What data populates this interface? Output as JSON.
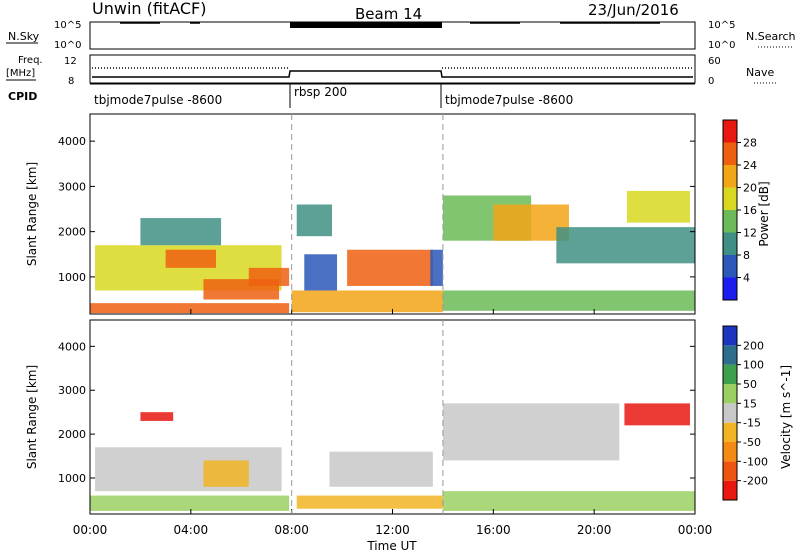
{
  "header": {
    "site": "Unwin (fitACF)",
    "beam": "Beam 14",
    "date": "23/Jun/2016"
  },
  "panels": {
    "nsky_label": "N.Sky",
    "nsky_ticks": [
      "10^5",
      "10^0"
    ],
    "nsearch_label": "N.Search",
    "freq_label": [
      "Freq.",
      "[MHz]"
    ],
    "freq_ticks": [
      "12",
      "8"
    ],
    "nave_ticks": [
      "60",
      "0"
    ],
    "nave_label": "Nave",
    "cpid_label": "CPID",
    "cpid_segments": [
      {
        "start": 0,
        "end": 8,
        "name": "tbjmode7pulse -8600"
      },
      {
        "start": 8,
        "end": 14,
        "name": "rbsp 200"
      },
      {
        "start": 14,
        "end": 24,
        "name": "tbjmode7pulse -8600"
      }
    ]
  },
  "chart_data": [
    {
      "type": "heatmap",
      "name": "power",
      "ylabel": "Slant Range [km]",
      "yticks": [
        1000,
        2000,
        3000,
        4000
      ],
      "ylim": [
        180,
        4600
      ],
      "colorbar_label": "Power [dB]",
      "colorbar_ticks": [
        4,
        8,
        12,
        16,
        20,
        24,
        28
      ],
      "colorbar_range": [
        0,
        32
      ],
      "colors": [
        "#1c1cf0",
        "#2a57b8",
        "#3f8f84",
        "#6cbb58",
        "#d8d820",
        "#f2a516",
        "#ee6010",
        "#e81810"
      ],
      "regions": [
        {
          "t0": 0.0,
          "t1": 7.9,
          "r0": 200,
          "r1": 420,
          "v": 26
        },
        {
          "t0": 0.2,
          "t1": 7.6,
          "r0": 700,
          "r1": 1700,
          "v": 18
        },
        {
          "t0": 3.0,
          "t1": 5.0,
          "r0": 1200,
          "r1": 1600,
          "v": 26
        },
        {
          "t0": 4.5,
          "t1": 7.5,
          "r0": 500,
          "r1": 950,
          "v": 24
        },
        {
          "t0": 6.3,
          "t1": 7.9,
          "r0": 800,
          "r1": 1200,
          "v": 27
        },
        {
          "t0": 2.0,
          "t1": 5.2,
          "r0": 1700,
          "r1": 2300,
          "v": 10
        },
        {
          "t0": 8.0,
          "t1": 14.0,
          "r0": 220,
          "r1": 700,
          "v": 22
        },
        {
          "t0": 8.2,
          "t1": 9.6,
          "r0": 1900,
          "r1": 2600,
          "v": 9
        },
        {
          "t0": 8.5,
          "t1": 9.8,
          "r0": 700,
          "r1": 1500,
          "v": 7
        },
        {
          "t0": 10.2,
          "t1": 13.6,
          "r0": 800,
          "r1": 1600,
          "v": 24
        },
        {
          "t0": 13.5,
          "t1": 14.0,
          "r0": 800,
          "r1": 1600,
          "v": 6
        },
        {
          "t0": 14.0,
          "t1": 24.0,
          "r0": 250,
          "r1": 700,
          "v": 14
        },
        {
          "t0": 14.0,
          "t1": 17.5,
          "r0": 1800,
          "r1": 2800,
          "v": 12
        },
        {
          "t0": 16.0,
          "t1": 19.0,
          "r0": 1800,
          "r1": 2600,
          "v": 21
        },
        {
          "t0": 18.5,
          "t1": 24.0,
          "r0": 1300,
          "r1": 2100,
          "v": 10
        },
        {
          "t0": 21.3,
          "t1": 23.8,
          "r0": 2200,
          "r1": 2900,
          "v": 18
        }
      ]
    },
    {
      "type": "heatmap",
      "name": "velocity",
      "ylabel": "Slant Range [km]",
      "yticks": [
        1000,
        2000,
        3000,
        4000
      ],
      "ylim": [
        180,
        4600
      ],
      "colorbar_label": "Velocity [m s^-1]",
      "colorbar_ticks": [
        -200,
        -100,
        -50,
        -15,
        15,
        50,
        100,
        200
      ],
      "colorbar_range": [
        -250,
        250
      ],
      "colors": [
        "#e81810",
        "#ee5410",
        "#f28a14",
        "#f2b424",
        "#c8c8c8",
        "#9ad062",
        "#3ea04e",
        "#2e6e8c",
        "#1c34c0"
      ],
      "regions": [
        {
          "t0": 0.0,
          "t1": 7.9,
          "r0": 250,
          "r1": 600,
          "v": 40
        },
        {
          "t0": 0.2,
          "t1": 7.6,
          "r0": 700,
          "r1": 1700,
          "v": 0
        },
        {
          "t0": 4.5,
          "t1": 6.3,
          "r0": 800,
          "r1": 1400,
          "v": -40
        },
        {
          "t0": 2.0,
          "t1": 3.3,
          "r0": 2300,
          "r1": 2500,
          "v": -220
        },
        {
          "t0": 8.2,
          "t1": 14.0,
          "r0": 300,
          "r1": 600,
          "v": -30
        },
        {
          "t0": 9.5,
          "t1": 13.6,
          "r0": 800,
          "r1": 1600,
          "v": 0
        },
        {
          "t0": 14.0,
          "t1": 21.0,
          "r0": 1400,
          "r1": 2700,
          "v": 0
        },
        {
          "t0": 21.2,
          "t1": 23.8,
          "r0": 2200,
          "r1": 2700,
          "v": -220
        },
        {
          "t0": 14.0,
          "t1": 24.0,
          "r0": 250,
          "r1": 700,
          "v": 30
        }
      ]
    }
  ],
  "x_axis": {
    "label": "Time UT",
    "ticks": [
      "00:00",
      "04:00",
      "08:00",
      "12:00",
      "16:00",
      "20:00",
      "00:00"
    ],
    "tick_hours": [
      0,
      4,
      8,
      12,
      16,
      20,
      24
    ],
    "range": [
      0,
      24
    ]
  }
}
